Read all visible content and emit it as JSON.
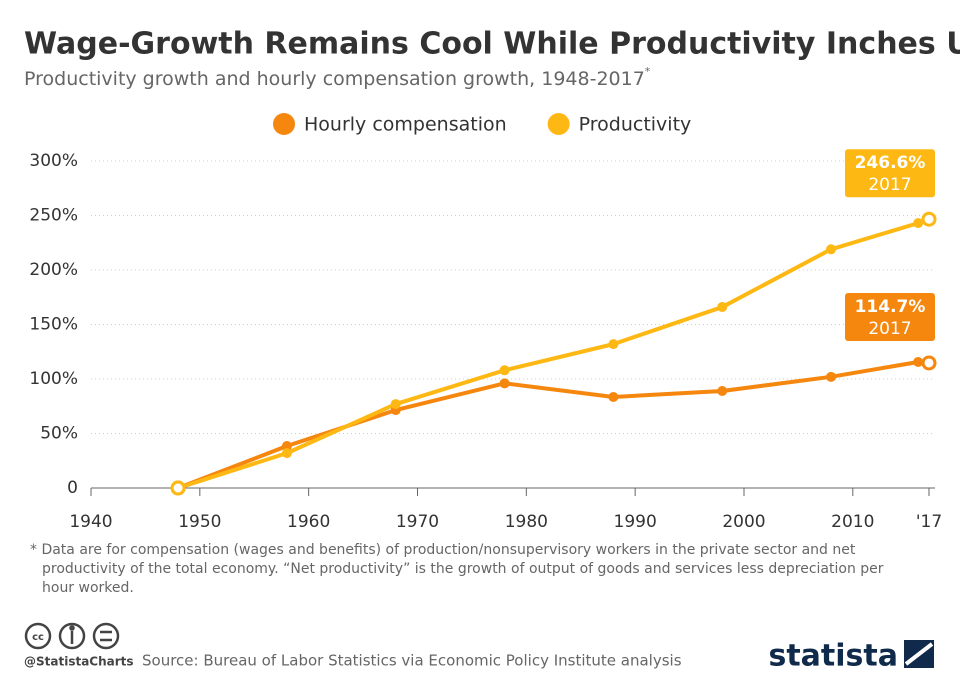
{
  "chart_data": {
    "type": "line",
    "title": "Wage-Growth Remains Cool While Productivity Inches Up",
    "subtitle": "Productivity growth and hourly compensation growth, 1948-2017",
    "subtitle_mark": "*",
    "x": [
      1948,
      1958,
      1968,
      1978,
      1988,
      1998,
      2008,
      2016,
      2017
    ],
    "series": [
      {
        "name": "Hourly compensation",
        "color": "#f5870f",
        "values": [
          0,
          38.5,
          71.5,
          96,
          83.5,
          89,
          102,
          115.6,
          114.7
        ],
        "value_labels": [
          null,
          null,
          null,
          null,
          null,
          null,
          null,
          null,
          "114.7%"
        ]
      },
      {
        "name": "Productivity",
        "color": "#fdb813",
        "values": [
          0,
          32,
          77,
          108,
          132,
          166,
          219,
          243,
          246.6
        ],
        "value_labels": [
          null,
          null,
          null,
          null,
          null,
          null,
          null,
          null,
          "246.6%"
        ]
      }
    ],
    "callout_year": "2017",
    "xlim": [
      1940,
      2017
    ],
    "xticks": [
      1940,
      1950,
      1960,
      1970,
      1980,
      1990,
      2000,
      2010,
      {
        "value": 2017,
        "label": "'17"
      }
    ],
    "ylim": [
      0,
      300
    ],
    "yticks": [
      0,
      {
        "value": 50,
        "label": "50%"
      },
      {
        "value": 100,
        "label": "100%"
      },
      {
        "value": 150,
        "label": "150%"
      },
      {
        "value": 200,
        "label": "200%"
      },
      {
        "value": 250,
        "label": "250%"
      },
      {
        "value": 300,
        "label": "300%"
      }
    ],
    "grid": true,
    "legend": "top",
    "footnote": "* Data are for compensation (wages and benefits) of production/nonsupervisory workers in the private sector and net productivity of the total economy. “Net productivity” is the growth of output of goods and services less depreciation per hour worked.",
    "source": "Source: Bureau of Labor Statistics via Economic Policy Institute analysis",
    "handle": "@StatistaCharts",
    "brand": "statista"
  }
}
